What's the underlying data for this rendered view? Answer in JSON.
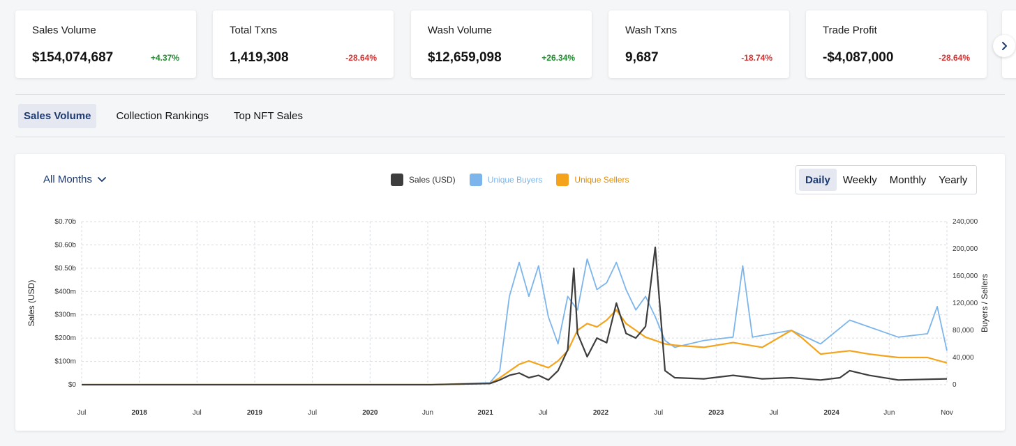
{
  "kpis": [
    {
      "title": "Sales Volume",
      "value": "$154,074,687",
      "change": "+4.37%",
      "trend": "up"
    },
    {
      "title": "Total Txns",
      "value": "1,419,308",
      "change": "-28.64%",
      "trend": "down"
    },
    {
      "title": "Wash Volume",
      "value": "$12,659,098",
      "change": "+26.34%",
      "trend": "up"
    },
    {
      "title": "Wash Txns",
      "value": "9,687",
      "change": "-18.74%",
      "trend": "down"
    },
    {
      "title": "Trade Profit",
      "value": "-$4,087,000",
      "change": "-28.64%",
      "trend": "down"
    }
  ],
  "next_icon": "chevron-right-icon",
  "tabs": [
    {
      "label": "Sales Volume",
      "active": true
    },
    {
      "label": "Collection Rankings",
      "active": false
    },
    {
      "label": "Top NFT Sales",
      "active": false
    }
  ],
  "chart_controls": {
    "month_filter": "All Months",
    "periods": [
      {
        "label": "Daily",
        "active": true
      },
      {
        "label": "Weekly",
        "active": false
      },
      {
        "label": "Monthly",
        "active": false
      },
      {
        "label": "Yearly",
        "active": false
      }
    ]
  },
  "colors": {
    "sales": "#3d3d3d",
    "buyers": "#7cb5ec",
    "sellers": "#f4a31a",
    "accent": "#1d3a70",
    "positive": "#1e8a2e",
    "negative": "#d32f2f"
  },
  "chart_data": {
    "type": "line",
    "title": "",
    "y_left_label": "Sales (USD)",
    "y_right_label": "Buyers / Sellers",
    "x_ticks": [
      "Jul",
      "2018",
      "Jul",
      "2019",
      "Jul",
      "2020",
      "Jun",
      "2021",
      "Jul",
      "2022",
      "Jul",
      "2023",
      "Jul",
      "2024",
      "Jun",
      "Nov"
    ],
    "y_left_ticks": [
      "$0",
      "$100m",
      "$200m",
      "$300m",
      "$400m",
      "$0.50b",
      "$0.60b",
      "$0.70b"
    ],
    "y_right_ticks": [
      "0",
      "40,000",
      "80,000",
      "120,000",
      "160,000",
      "200,000",
      "240,000"
    ],
    "y_left_range": [
      0,
      700000000
    ],
    "y_right_range": [
      0,
      240000
    ],
    "grid": true,
    "legend_position": "top-center",
    "x_range": [
      "2017-06",
      "2024-11"
    ],
    "series": [
      {
        "name": "Sales (USD)",
        "axis": "left",
        "points": [
          [
            "2017-06",
            0
          ],
          [
            "2020-06",
            0
          ],
          [
            "2020-12",
            5000000
          ],
          [
            "2021-01",
            20000000
          ],
          [
            "2021-02",
            40000000
          ],
          [
            "2021-03",
            50000000
          ],
          [
            "2021-04",
            30000000
          ],
          [
            "2021-05",
            40000000
          ],
          [
            "2021-06",
            20000000
          ],
          [
            "2021-07",
            60000000
          ],
          [
            "2021-08",
            150000000
          ],
          [
            "2021-08-20",
            500000000
          ],
          [
            "2021-09",
            220000000
          ],
          [
            "2021-10",
            120000000
          ],
          [
            "2021-11",
            200000000
          ],
          [
            "2021-12",
            180000000
          ],
          [
            "2022-01",
            350000000
          ],
          [
            "2022-02",
            220000000
          ],
          [
            "2022-03",
            200000000
          ],
          [
            "2022-04",
            250000000
          ],
          [
            "2022-05",
            590000000
          ],
          [
            "2022-06",
            60000000
          ],
          [
            "2022-07",
            30000000
          ],
          [
            "2022-10",
            25000000
          ],
          [
            "2023-01",
            40000000
          ],
          [
            "2023-04",
            25000000
          ],
          [
            "2023-07",
            30000000
          ],
          [
            "2023-10",
            20000000
          ],
          [
            "2023-12",
            30000000
          ],
          [
            "2024-01",
            60000000
          ],
          [
            "2024-03",
            40000000
          ],
          [
            "2024-06",
            20000000
          ],
          [
            "2024-11",
            25000000
          ]
        ]
      },
      {
        "name": "Unique Buyers",
        "axis": "right",
        "points": [
          [
            "2017-06",
            0
          ],
          [
            "2020-06",
            0
          ],
          [
            "2020-12",
            3000
          ],
          [
            "2021-01",
            20000
          ],
          [
            "2021-02",
            130000
          ],
          [
            "2021-03",
            180000
          ],
          [
            "2021-04",
            130000
          ],
          [
            "2021-05",
            175000
          ],
          [
            "2021-06",
            100000
          ],
          [
            "2021-07",
            60000
          ],
          [
            "2021-08",
            130000
          ],
          [
            "2021-09",
            110000
          ],
          [
            "2021-10",
            185000
          ],
          [
            "2021-11",
            140000
          ],
          [
            "2021-12",
            150000
          ],
          [
            "2022-01",
            180000
          ],
          [
            "2022-02",
            140000
          ],
          [
            "2022-03",
            110000
          ],
          [
            "2022-04",
            130000
          ],
          [
            "2022-05",
            100000
          ],
          [
            "2022-06",
            65000
          ],
          [
            "2022-07",
            55000
          ],
          [
            "2022-10",
            65000
          ],
          [
            "2023-01",
            70000
          ],
          [
            "2023-02",
            175000
          ],
          [
            "2023-03",
            70000
          ],
          [
            "2023-07",
            80000
          ],
          [
            "2023-10",
            60000
          ],
          [
            "2024-01",
            95000
          ],
          [
            "2024-03",
            85000
          ],
          [
            "2024-06",
            70000
          ],
          [
            "2024-09",
            75000
          ],
          [
            "2024-10",
            115000
          ],
          [
            "2024-11",
            50000
          ]
        ]
      },
      {
        "name": "Unique Sellers",
        "axis": "right",
        "points": [
          [
            "2017-06",
            0
          ],
          [
            "2020-06",
            0
          ],
          [
            "2020-12",
            2000
          ],
          [
            "2021-01",
            10000
          ],
          [
            "2021-02",
            20000
          ],
          [
            "2021-03",
            30000
          ],
          [
            "2021-04",
            35000
          ],
          [
            "2021-05",
            30000
          ],
          [
            "2021-06",
            25000
          ],
          [
            "2021-07",
            35000
          ],
          [
            "2021-08",
            50000
          ],
          [
            "2021-09",
            80000
          ],
          [
            "2021-10",
            90000
          ],
          [
            "2021-11",
            85000
          ],
          [
            "2021-12",
            95000
          ],
          [
            "2022-01",
            110000
          ],
          [
            "2022-02",
            90000
          ],
          [
            "2022-03",
            80000
          ],
          [
            "2022-04",
            70000
          ],
          [
            "2022-05",
            65000
          ],
          [
            "2022-06",
            60000
          ],
          [
            "2022-07",
            58000
          ],
          [
            "2022-10",
            55000
          ],
          [
            "2023-01",
            62000
          ],
          [
            "2023-04",
            55000
          ],
          [
            "2023-07",
            80000
          ],
          [
            "2023-08",
            70000
          ],
          [
            "2023-10",
            45000
          ],
          [
            "2024-01",
            50000
          ],
          [
            "2024-03",
            45000
          ],
          [
            "2024-06",
            40000
          ],
          [
            "2024-09",
            40000
          ],
          [
            "2024-11",
            32000
          ]
        ]
      }
    ]
  }
}
